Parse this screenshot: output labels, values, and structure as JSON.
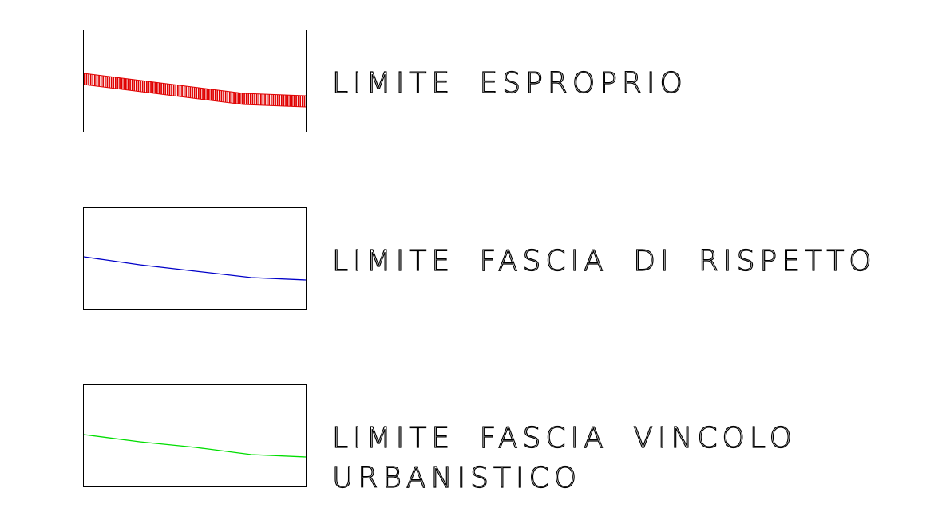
{
  "legend": {
    "items": [
      {
        "label_lines": [
          "LIMITE ESPROPRIO"
        ],
        "line_color": "#e00000",
        "line_style": "hatched-thick"
      },
      {
        "label_lines": [
          "LIMITE FASCIA DI RISPETTO"
        ],
        "line_color": "#0000c8",
        "line_style": "thin"
      },
      {
        "label_lines": [
          "LIMITE FASCIA VINCOLO",
          "URBANISTICO"
        ],
        "line_color": "#00dd00",
        "line_style": "thin"
      }
    ]
  }
}
